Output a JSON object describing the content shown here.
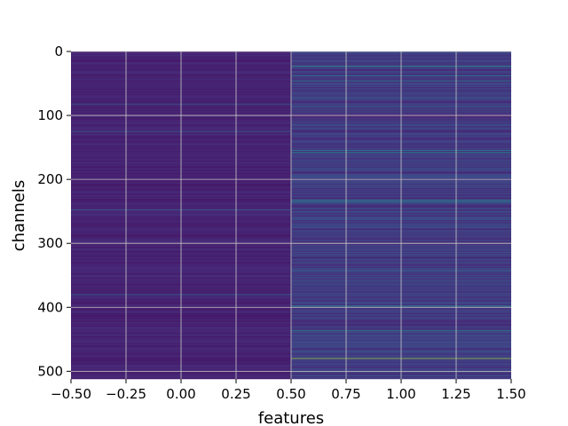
{
  "chart_data": {
    "type": "heatmap",
    "title": "",
    "xlabel": "features",
    "ylabel": "channels",
    "colormap": "viridis",
    "x_columns": [
      0,
      1
    ],
    "xlim": [
      -0.5,
      1.5
    ],
    "ylim": [
      512,
      0
    ],
    "n_channels": 512,
    "grid": true,
    "x_ticks": [
      -0.5,
      -0.25,
      0.0,
      0.25,
      0.5,
      0.75,
      1.0,
      1.25,
      1.5
    ],
    "x_tick_labels": [
      "−0.50",
      "−0.25",
      "0.00",
      "0.25",
      "0.50",
      "0.75",
      "1.00",
      "1.25",
      "1.50"
    ],
    "y_ticks": [
      0,
      100,
      200,
      300,
      400,
      500
    ],
    "y_tick_labels": [
      "0",
      "100",
      "200",
      "300",
      "400",
      "500"
    ],
    "value_range": [
      0,
      1
    ],
    "column_0_baseline": 0.1,
    "column_1_baseline": 0.18,
    "highlighted_rows": [
      {
        "column": 1,
        "channel": 23,
        "value": 0.55
      },
      {
        "column": 1,
        "channel": 38,
        "value": 0.45
      },
      {
        "column": 1,
        "channel": 46,
        "value": 0.4
      },
      {
        "column": 1,
        "channel": 101,
        "value": 0.02
      },
      {
        "column": 1,
        "channel": 155,
        "value": 0.5
      },
      {
        "column": 1,
        "channel": 158,
        "value": 0.48
      },
      {
        "column": 1,
        "channel": 232,
        "value": 0.5
      },
      {
        "column": 1,
        "channel": 235,
        "value": 0.45
      },
      {
        "column": 1,
        "channel": 300,
        "value": 0.6
      },
      {
        "column": 1,
        "channel": 322,
        "value": 0.02
      },
      {
        "column": 1,
        "channel": 398,
        "value": 0.5
      },
      {
        "column": 1,
        "channel": 436,
        "value": 0.5
      },
      {
        "column": 1,
        "channel": 480,
        "value": 0.85
      },
      {
        "column": 0,
        "channel": 82,
        "value": 0.3
      },
      {
        "column": 0,
        "channel": 125,
        "value": 0.3
      },
      {
        "column": 0,
        "channel": 248,
        "value": 0.3
      },
      {
        "column": 0,
        "channel": 380,
        "value": 0.35
      }
    ]
  }
}
